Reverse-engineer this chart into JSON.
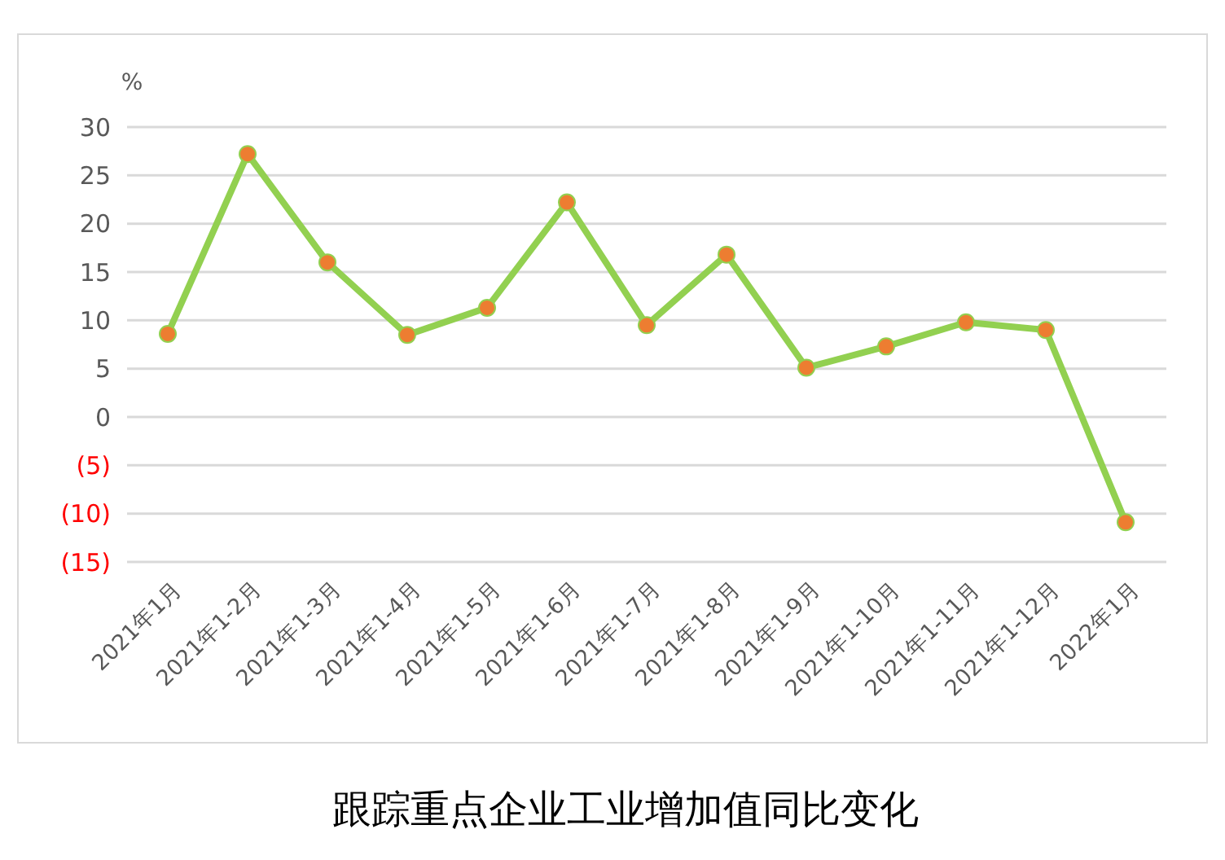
{
  "chart_data": {
    "type": "line",
    "title": "跟踪重点企业工业增加值同比变化",
    "ylabel": "%",
    "categories": [
      "2021年1月",
      "2021年1-2月",
      "2021年1-3月",
      "2021年1-4月",
      "2021年1-5月",
      "2021年1-6月",
      "2021年1-7月",
      "2021年1-8月",
      "2021年1-9月",
      "2021年1-10月",
      "2021年1-11月",
      "2021年1-12月",
      "2022年1月"
    ],
    "series": [
      {
        "color": "#92d050",
        "values": [
          8.6,
          27.2,
          16.0,
          8.5,
          11.3,
          22.2,
          9.5,
          16.8,
          5.1,
          7.3,
          9.8,
          9.0,
          -10.9
        ]
      }
    ],
    "ylim": [
      -15,
      30
    ],
    "yticks": [
      {
        "value": -15,
        "label": "(15)"
      },
      {
        "value": -10,
        "label": "(10)"
      },
      {
        "value": -5,
        "label": "(5)"
      },
      0,
      5,
      10,
      15,
      20,
      25,
      30
    ],
    "grid": "y",
    "marker": "circle"
  }
}
